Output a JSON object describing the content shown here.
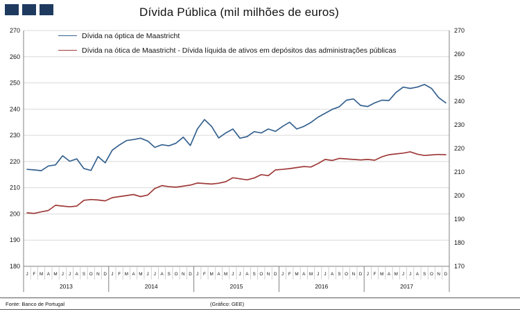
{
  "header": {
    "title": "Dívida Pública (mil milhões de euros)",
    "logo_color": "#1e3a5f"
  },
  "footer": {
    "source": "Fonte: Banco de Portugal",
    "credit": "(Gráfico: GEE)"
  },
  "colors": {
    "grid": "#d9d9d9",
    "axis": "#808080",
    "minor_tick": "#bfbfbf",
    "text": "#111111"
  },
  "chart_data": {
    "type": "line",
    "title": "Dívida Pública (mil milhões de euros)",
    "ylabel": "",
    "xlabel": "",
    "grid": true,
    "legend_position": "top-left-inside",
    "left_axis": {
      "min": 180,
      "max": 270,
      "step": 10,
      "ticks": [
        270,
        260,
        250,
        240,
        230,
        220,
        210,
        200,
        190,
        180
      ]
    },
    "right_axis": {
      "min": 170,
      "max": 270,
      "step": 10,
      "ticks": [
        270,
        260,
        250,
        240,
        230,
        220,
        210,
        200,
        190,
        180,
        170
      ]
    },
    "month_letters": [
      "J",
      "F",
      "M",
      "A",
      "M",
      "J",
      "J",
      "A",
      "S",
      "O",
      "N",
      "D"
    ],
    "years": [
      "2013",
      "2014",
      "2015",
      "2016",
      "2017"
    ],
    "series": [
      {
        "name": "Dívida na óptica de Maastricht",
        "color": "#35618f",
        "axis": "left",
        "values": [
          217.0,
          216.8,
          216.5,
          218.3,
          218.7,
          222.2,
          220.1,
          221.0,
          217.3,
          216.6,
          221.9,
          219.5,
          224.3,
          226.3,
          228.0,
          228.4,
          228.9,
          227.8,
          225.4,
          226.4,
          226.0,
          227.0,
          229.3,
          226.1,
          232.4,
          236.0,
          233.4,
          229.0,
          230.9,
          232.4,
          228.9,
          229.5,
          231.4,
          230.9,
          232.4,
          231.5,
          233.4,
          235.0,
          232.4,
          233.4,
          234.9,
          236.9,
          238.4,
          239.9,
          240.9,
          243.4,
          243.9,
          241.4,
          241.0,
          242.4,
          243.4,
          243.3,
          246.4,
          248.4,
          247.9,
          248.4,
          249.4,
          247.9,
          244.4,
          242.4
        ]
      },
      {
        "name": "Dívida na ótica de Maastricht - Dívida líquida de ativos em depósitos das administrações públicas",
        "color": "#9e3a38",
        "axis": "left",
        "values": [
          200.4,
          200.2,
          200.8,
          201.3,
          203.3,
          203.0,
          202.7,
          203.0,
          205.2,
          205.5,
          205.3,
          205.0,
          206.2,
          206.6,
          207.0,
          207.4,
          206.6,
          207.2,
          209.7,
          210.8,
          210.4,
          210.2,
          210.6,
          211.0,
          211.8,
          211.6,
          211.4,
          211.7,
          212.3,
          213.8,
          213.4,
          213.0,
          213.7,
          215.0,
          214.6,
          216.8,
          217.0,
          217.3,
          217.7,
          218.1,
          217.9,
          219.2,
          220.8,
          220.4,
          221.2,
          221.0,
          220.8,
          220.6,
          220.8,
          220.5,
          221.8,
          222.6,
          222.9,
          223.2,
          223.7,
          222.8,
          222.3,
          222.5,
          222.7,
          222.6
        ]
      }
    ]
  }
}
